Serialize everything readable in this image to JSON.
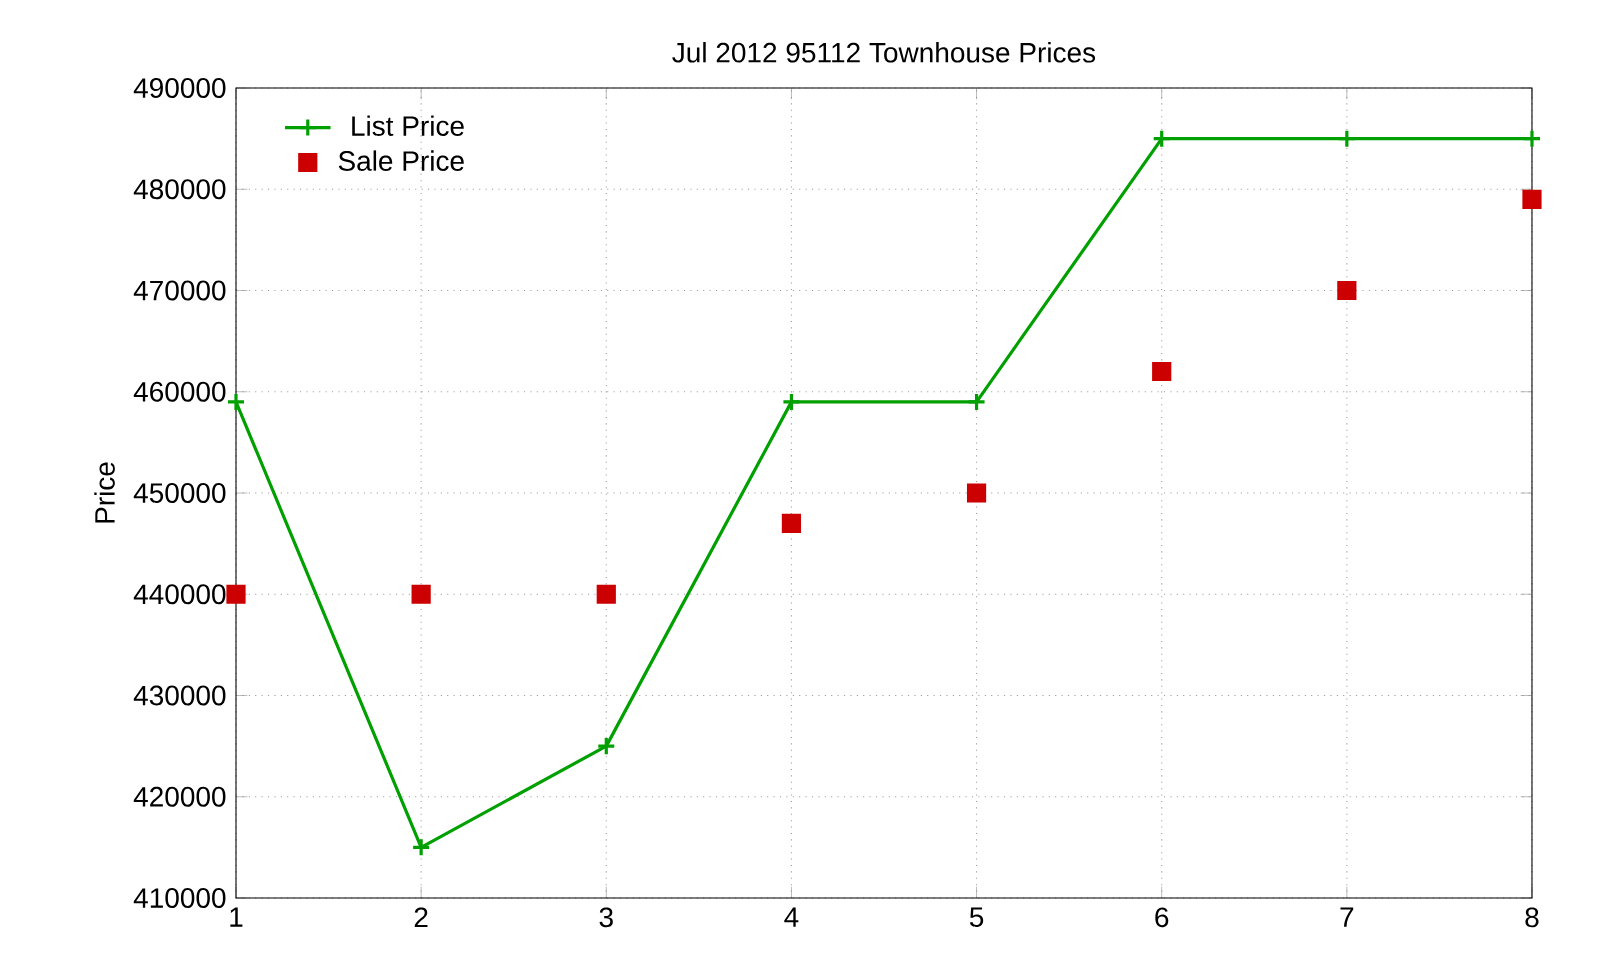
{
  "chart_data": {
    "type": "line",
    "title": "Jul 2012 95112 Townhouse Prices",
    "ylabel": "Price",
    "x": [
      1,
      2,
      3,
      4,
      5,
      6,
      7,
      8
    ],
    "series": [
      {
        "name": "List Price",
        "color": "#00a000",
        "marker": "cross",
        "values": [
          459000,
          415000,
          425000,
          459000,
          459000,
          485000,
          485000,
          485000
        ]
      },
      {
        "name": "Sale Price",
        "type": "scatter",
        "color": "#cc0000",
        "marker": "square",
        "values": [
          440000,
          440000,
          440000,
          447000,
          450000,
          462000,
          470000,
          479000
        ]
      }
    ],
    "xlim": [
      1,
      8
    ],
    "xticks": [
      1,
      2,
      3,
      4,
      5,
      6,
      7,
      8
    ],
    "ylim": [
      410000,
      490000
    ],
    "yticks": [
      410000,
      420000,
      430000,
      440000,
      450000,
      460000,
      470000,
      480000,
      490000
    ],
    "grid": true,
    "legend": "top left"
  }
}
